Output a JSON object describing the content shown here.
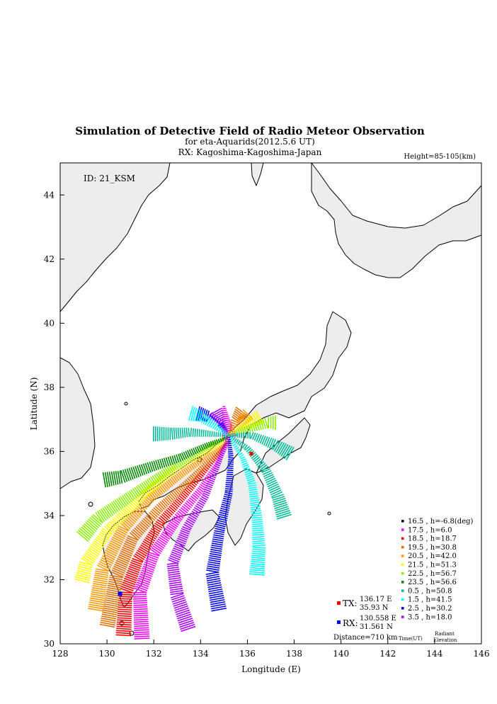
{
  "chart_data": {
    "type": "scatter",
    "title": "Simulation of Detective Field of Radio Meteor Observation",
    "subtitle1": "for eta-Aquarids(2012.5.6 UT)",
    "subtitle2": "RX: Kagoshima-Kagoshima-Japan",
    "height_label": "Height=85-105(km)",
    "id_label": "ID: 21_KSM",
    "xlabel": "Longitude (E)",
    "ylabel": "Latitude (N)",
    "xlim": [
      128,
      146
    ],
    "ylim": [
      30,
      45
    ],
    "xticks": [
      "128",
      "130",
      "132",
      "134",
      "136",
      "138",
      "140",
      "142",
      "144",
      "146"
    ],
    "yticks": [
      "30",
      "32",
      "34",
      "36",
      "38",
      "40",
      "42",
      "44"
    ],
    "tx": {
      "label": "TX:",
      "lon_text": "136.17 E",
      "lat_text": "35.93 N",
      "lon": 136.17,
      "lat": 35.93,
      "color": "#ff0000"
    },
    "rx": {
      "label": "RX:",
      "lon_text": "130.558 E",
      "lat_text": "31.561 N",
      "lon": 130.558,
      "lat": 31.561,
      "color": "#0000ff"
    },
    "distance": "Distance=710 km",
    "time_label": "Time(UT)",
    "radiant_label": "Radiant",
    "elevation_label": "Elevation",
    "legend": [
      {
        "text": "16.5 ,  h=-6.8(deg)",
        "color": "#000000"
      },
      {
        "text": "17.5 ,  h=6.0",
        "color": "#ff00ff"
      },
      {
        "text": "18.5 ,  h=18.7",
        "color": "#ff0000"
      },
      {
        "text": "19.5 ,  h=30.8",
        "color": "#e07000"
      },
      {
        "text": "20.5 ,  h=42.0",
        "color": "#ff9900"
      },
      {
        "text": "21.5 ,  h=51.3",
        "color": "#ffff00"
      },
      {
        "text": "22.5 ,  h=56.7",
        "color": "#88ee00"
      },
      {
        "text": "23.5 ,  h=56.6",
        "color": "#008800"
      },
      {
        "text": "0.5  ,  h=50.8",
        "color": "#00bb99"
      },
      {
        "text": "1.5  ,  h=41.5",
        "color": "#00ffff"
      },
      {
        "text": "2.5  ,  h=30.2",
        "color": "#0000ff"
      },
      {
        "text": "3.5  ,  h=18.0",
        "color": "#aa00ff"
      }
    ],
    "series": [
      {
        "color": "#ff00ff",
        "points": [
          [
            135.0,
            37.4
          ],
          [
            135.1,
            36.9
          ],
          [
            135.25,
            36.4
          ]
        ]
      },
      {
        "color": "#ff0000",
        "points": [
          [
            135.2,
            36.3
          ],
          [
            134.5,
            35.7
          ],
          [
            133.5,
            34.8
          ],
          [
            132.3,
            33.8
          ],
          [
            131.3,
            32.6
          ],
          [
            130.8,
            31.6
          ],
          [
            130.7,
            30.2
          ]
        ]
      },
      {
        "color": "#ff00ff",
        "points": [
          [
            135.2,
            36.3
          ],
          [
            134.7,
            35.6
          ],
          [
            134.0,
            34.8
          ],
          [
            133.0,
            33.9
          ],
          [
            132.0,
            32.8
          ],
          [
            131.4,
            31.6
          ],
          [
            131.5,
            30.1
          ]
        ]
      },
      {
        "color": "#e07000",
        "points": [
          [
            135.2,
            36.35
          ],
          [
            134.5,
            35.8
          ],
          [
            133.4,
            35.0
          ],
          [
            132.2,
            34.2
          ],
          [
            131.1,
            33.3
          ],
          [
            130.4,
            32.1
          ],
          [
            130.0,
            30.5
          ]
        ]
      },
      {
        "color": "#ff9900",
        "points": [
          [
            135.2,
            36.4
          ],
          [
            134.4,
            35.9
          ],
          [
            133.2,
            35.3
          ],
          [
            131.8,
            34.5
          ],
          [
            130.7,
            33.6
          ],
          [
            129.8,
            32.3
          ],
          [
            129.5,
            31.0
          ]
        ]
      },
      {
        "color": "#ffff00",
        "points": [
          [
            135.2,
            36.4
          ],
          [
            134.3,
            36.0
          ],
          [
            133.0,
            35.5
          ],
          [
            131.5,
            34.6
          ],
          [
            130.0,
            33.5
          ],
          [
            129.1,
            32.5
          ],
          [
            128.9,
            31.9
          ]
        ]
      },
      {
        "color": "#88ee00",
        "points": [
          [
            135.2,
            36.45
          ],
          [
            134.2,
            36.1
          ],
          [
            132.8,
            35.5
          ],
          [
            131.0,
            34.6
          ],
          [
            129.6,
            33.9
          ],
          [
            128.9,
            33.3
          ]
        ]
      },
      {
        "color": "#008800",
        "points": [
          [
            135.2,
            36.45
          ],
          [
            134.3,
            36.2
          ],
          [
            133.1,
            35.8
          ],
          [
            131.8,
            35.5
          ],
          [
            130.6,
            35.2
          ],
          [
            129.8,
            35.1
          ]
        ]
      },
      {
        "color": "#00bb99",
        "points": [
          [
            135.2,
            36.5
          ],
          [
            134.4,
            36.55
          ],
          [
            133.5,
            36.6
          ],
          [
            132.7,
            36.55
          ],
          [
            131.9,
            36.55
          ]
        ]
      },
      {
        "color": "#00bb99",
        "points": [
          [
            135.2,
            36.5
          ],
          [
            136.0,
            36.1
          ],
          [
            136.8,
            35.4
          ],
          [
            137.3,
            34.6
          ],
          [
            137.6,
            33.9
          ]
        ]
      },
      {
        "color": "#00ffff",
        "points": [
          [
            135.2,
            36.5
          ],
          [
            135.8,
            35.8
          ],
          [
            136.2,
            35.0
          ],
          [
            136.4,
            34.0
          ],
          [
            136.5,
            33.0
          ],
          [
            136.4,
            32.1
          ]
        ]
      },
      {
        "color": "#0000ff",
        "points": [
          [
            135.2,
            36.5
          ],
          [
            135.3,
            35.8
          ],
          [
            135.2,
            34.7
          ],
          [
            134.8,
            33.5
          ],
          [
            134.5,
            32.2
          ],
          [
            134.8,
            31.0
          ]
        ]
      },
      {
        "color": "#aa00ff",
        "points": [
          [
            135.2,
            36.5
          ],
          [
            134.8,
            35.7
          ],
          [
            134.2,
            34.6
          ],
          [
            133.4,
            33.6
          ],
          [
            132.8,
            32.5
          ],
          [
            133.0,
            31.5
          ],
          [
            133.5,
            30.4
          ]
        ]
      },
      {
        "color": "#0000ff",
        "points": [
          [
            135.2,
            36.5
          ],
          [
            134.8,
            36.9
          ],
          [
            134.3,
            37.1
          ],
          [
            133.8,
            37.2
          ]
        ]
      },
      {
        "color": "#aa00ff",
        "points": [
          [
            135.2,
            36.5
          ],
          [
            134.9,
            36.9
          ],
          [
            134.6,
            37.3
          ]
        ]
      },
      {
        "color": "#00ffff",
        "points": [
          [
            135.2,
            36.5
          ],
          [
            134.6,
            36.8
          ],
          [
            134.0,
            37.1
          ],
          [
            133.5,
            37.2
          ]
        ]
      },
      {
        "color": "#e07000",
        "points": [
          [
            135.2,
            36.5
          ],
          [
            135.5,
            37.0
          ],
          [
            135.8,
            37.3
          ]
        ]
      },
      {
        "color": "#ff9900",
        "points": [
          [
            135.2,
            36.5
          ],
          [
            135.7,
            36.9
          ],
          [
            136.1,
            37.2
          ]
        ]
      },
      {
        "color": "#ffff00",
        "points": [
          [
            135.2,
            36.5
          ],
          [
            135.9,
            36.8
          ],
          [
            136.6,
            37.1
          ]
        ]
      },
      {
        "color": "#88ee00",
        "points": [
          [
            135.2,
            36.5
          ],
          [
            136.0,
            36.7
          ],
          [
            136.9,
            36.9
          ],
          [
            137.3,
            36.9
          ]
        ]
      },
      {
        "color": "#00bb99",
        "points": [
          [
            135.2,
            36.5
          ],
          [
            136.2,
            36.5
          ],
          [
            137.2,
            36.2
          ],
          [
            137.9,
            35.9
          ]
        ]
      }
    ]
  }
}
